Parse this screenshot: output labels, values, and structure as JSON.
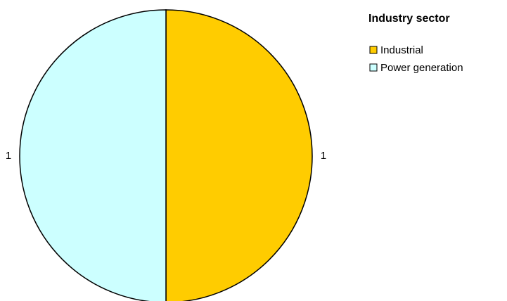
{
  "chart_data": {
    "type": "pie",
    "legend_title": "Industry sector",
    "categories": [
      "Industrial",
      "Power generation"
    ],
    "values": [
      1,
      1
    ],
    "colors": [
      "#ffcc00",
      "#ccffff"
    ],
    "legend": "right"
  }
}
